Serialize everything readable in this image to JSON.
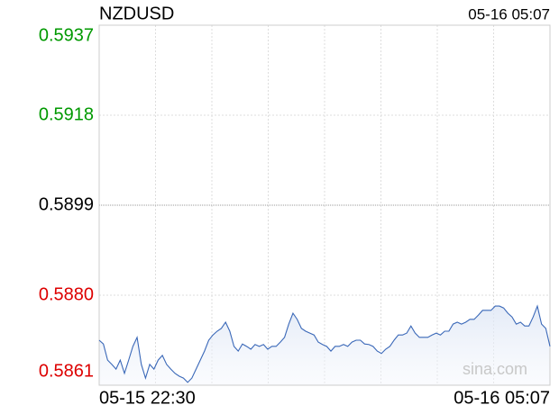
{
  "chart_data": {
    "type": "line",
    "title": "NZDUSD",
    "timestamp": "05-16 05:07",
    "x_start_label": "05-15 22:30",
    "x_end_label": "05-16 05:07",
    "watermark": "sina.com",
    "ylim": [
      0.5861,
      0.5937
    ],
    "yticks": [
      0.5861,
      {
        "value": 0.588,
        "label": "0.5880"
      },
      0.5899,
      0.5918,
      0.5937
    ],
    "grid": true,
    "up_color": "#009900",
    "down_color": "#dd0000",
    "series": [
      {
        "name": "NZDUSD",
        "color": "#3a68b8",
        "values": [
          0.58705,
          0.58697,
          0.58663,
          0.58654,
          0.58644,
          0.58663,
          0.58635,
          0.58663,
          0.58692,
          0.58711,
          0.58654,
          0.58625,
          0.58654,
          0.58644,
          0.58663,
          0.58673,
          0.58654,
          0.58644,
          0.58635,
          0.58629,
          0.58625,
          0.58616,
          0.58625,
          0.58644,
          0.58663,
          0.58682,
          0.58705,
          0.58716,
          0.58724,
          0.5873,
          0.58743,
          0.58724,
          0.58692,
          0.58682,
          0.58697,
          0.58692,
          0.58686,
          0.58696,
          0.58692,
          0.58696,
          0.58686,
          0.58692,
          0.58692,
          0.58701,
          0.58711,
          0.58739,
          0.58762,
          0.58749,
          0.5873,
          0.58724,
          0.5872,
          0.58716,
          0.58701,
          0.58696,
          0.58692,
          0.58682,
          0.58692,
          0.58692,
          0.58696,
          0.58692,
          0.58701,
          0.58705,
          0.58705,
          0.58697,
          0.58696,
          0.58692,
          0.58682,
          0.58677,
          0.58686,
          0.58692,
          0.58705,
          0.58716,
          0.58716,
          0.5872,
          0.58735,
          0.5872,
          0.58711,
          0.58711,
          0.58711,
          0.58716,
          0.5872,
          0.58716,
          0.58724,
          0.58724,
          0.58739,
          0.58743,
          0.58739,
          0.58743,
          0.58749,
          0.58749,
          0.58758,
          0.58768,
          0.58768,
          0.58768,
          0.58777,
          0.58777,
          0.58773,
          0.58762,
          0.58754,
          0.58739,
          0.58743,
          0.58735,
          0.58735,
          0.58754,
          0.58777,
          0.58739,
          0.5873,
          0.58692
        ]
      }
    ]
  }
}
